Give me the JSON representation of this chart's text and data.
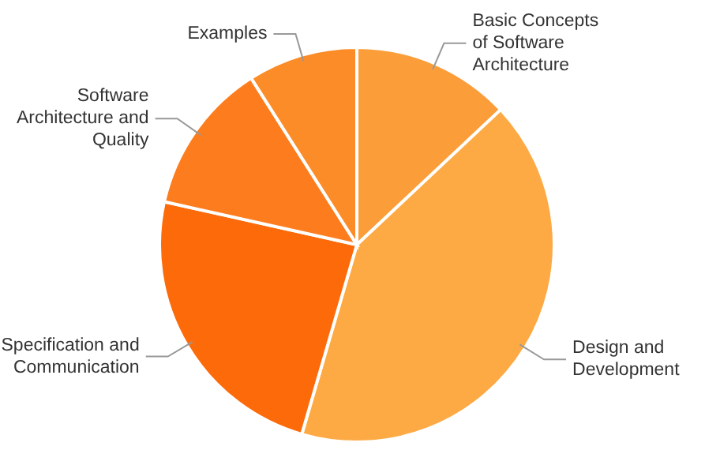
{
  "chart_data": {
    "type": "pie",
    "categories": [
      "Basic Concepts\nof Software\nArchitecture",
      "Design and\nDevelopment",
      "Specification and\nCommunication",
      "Software\nArchitecture and\nQuality",
      "Examples"
    ],
    "values": [
      13,
      41.5,
      24,
      12.5,
      9
    ],
    "colors": [
      "#fb9e3a",
      "#fdaa45",
      "#fd6a0a",
      "#fd7d1e",
      "#fb8c28"
    ],
    "legend": false
  }
}
